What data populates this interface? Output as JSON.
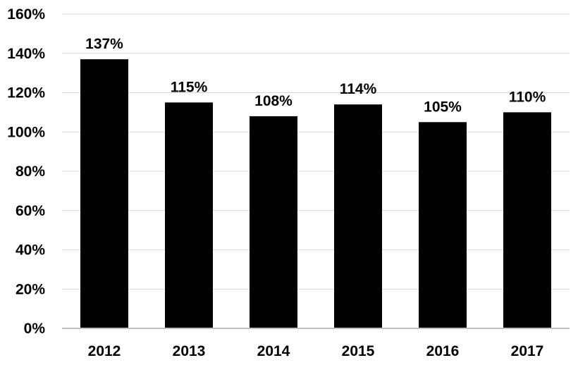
{
  "chart_data": {
    "type": "bar",
    "categories": [
      "2012",
      "2013",
      "2014",
      "2015",
      "2016",
      "2017"
    ],
    "values": [
      137,
      115,
      108,
      114,
      105,
      110
    ],
    "data_labels": [
      "137%",
      "115%",
      "108%",
      "114%",
      "105%",
      "110%"
    ],
    "y_ticks": [
      0,
      20,
      40,
      60,
      80,
      100,
      120,
      140,
      160
    ],
    "y_tick_labels": [
      "0%",
      "20%",
      "40%",
      "60%",
      "80%",
      "100%",
      "120%",
      "140%",
      "160%"
    ],
    "ylim": [
      0,
      160
    ],
    "title": "",
    "xlabel": "",
    "ylabel": "",
    "grid": true,
    "legend": "none",
    "colors": {
      "bar": "#000000",
      "grid": "#d9d9d9",
      "axis": "#bfbfbf",
      "text": "#000000"
    }
  }
}
